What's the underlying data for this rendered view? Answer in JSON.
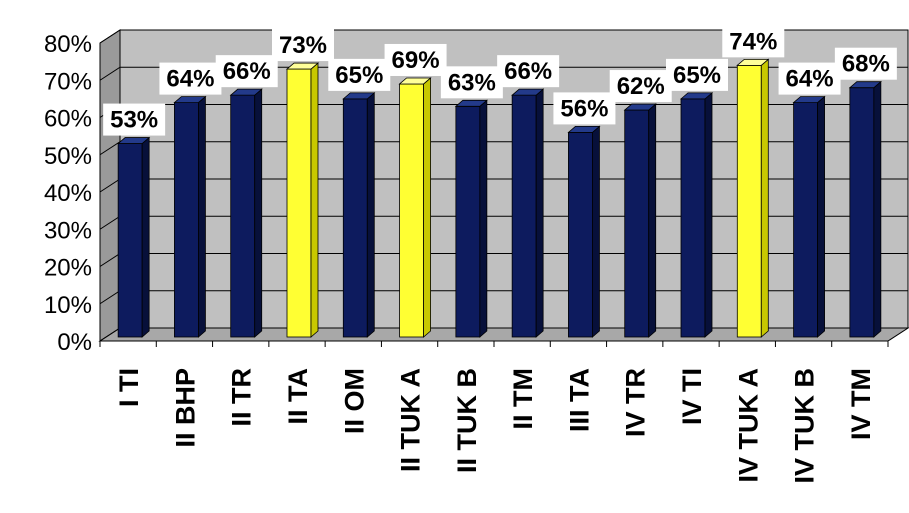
{
  "chart_data": {
    "type": "bar",
    "title": "",
    "xlabel": "",
    "ylabel": "",
    "ylim": [
      0,
      80
    ],
    "ytick_step": 10,
    "ytick_suffix": "%",
    "grid": true,
    "legend": "none",
    "three_d": true,
    "categories": [
      "I TI",
      "II BHP",
      "II TR",
      "II TA",
      "II OM",
      "II TUK A",
      "II TUK B",
      "II TM",
      "III TA",
      "IV TR",
      "IV TI",
      "IV TUK A",
      "IV TUK B",
      "IV TM"
    ],
    "values": [
      53,
      64,
      66,
      73,
      65,
      69,
      63,
      66,
      56,
      62,
      65,
      74,
      64,
      68
    ],
    "data_labels": [
      "53%",
      "64%",
      "66%",
      "73%",
      "65%",
      "69%",
      "63%",
      "66%",
      "56%",
      "62%",
      "65%",
      "74%",
      "64%",
      "68%"
    ],
    "bar_colors": [
      "navy",
      "navy",
      "navy",
      "yellow",
      "navy",
      "yellow",
      "navy",
      "navy",
      "navy",
      "navy",
      "navy",
      "yellow",
      "navy",
      "navy"
    ],
    "colors": {
      "navy": "#0d1b5e",
      "navy_side": "#07103a",
      "navy_top": "#233a8a",
      "yellow": "#ffff33",
      "yellow_side": "#c8c800",
      "yellow_top": "#ffff99",
      "wall": "#c0c0c0",
      "wall_dark": "#9a9a9a",
      "floor": "#a8a8a8"
    }
  }
}
